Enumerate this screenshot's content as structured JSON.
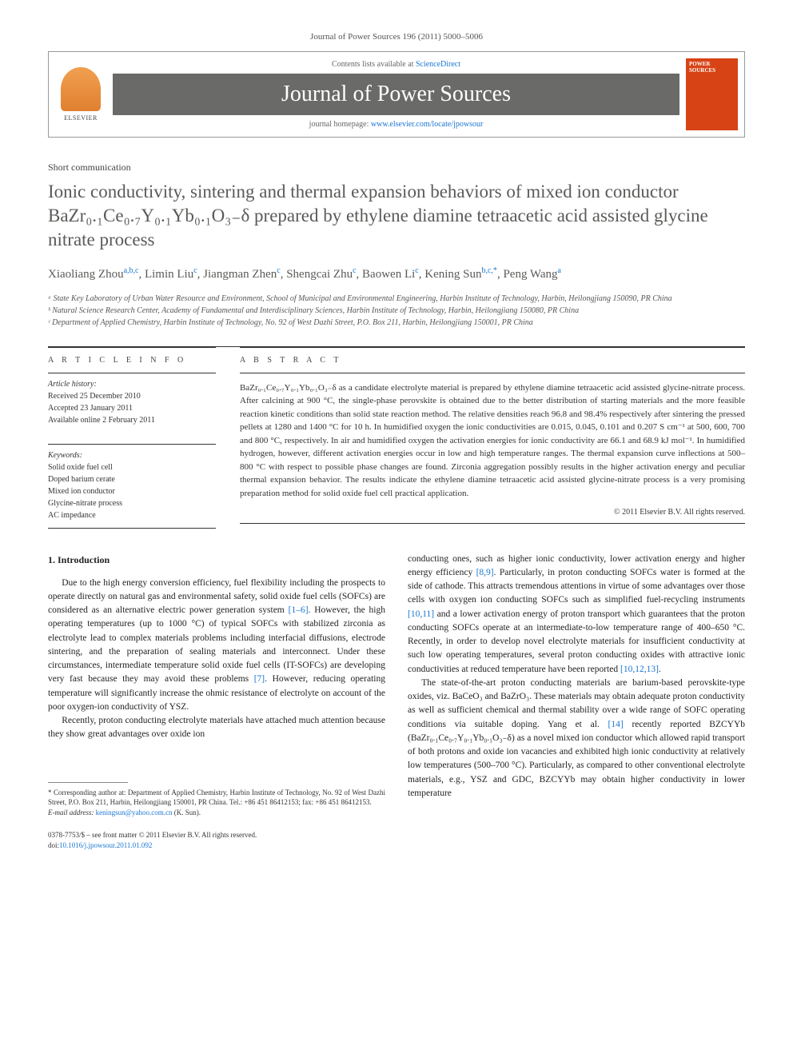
{
  "top_bar": "Journal of Power Sources 196 (2011) 5000–5006",
  "header": {
    "contents_prefix": "Contents lists available at ",
    "contents_link": "ScienceDirect",
    "journal_name": "Journal of Power Sources",
    "homepage_prefix": "journal homepage: ",
    "homepage_url": "www.elsevier.com/locate/jpowsour",
    "publisher": "ELSEVIER",
    "cover_title": "POWER SOURCES"
  },
  "article_type": "Short communication",
  "title": "Ionic conductivity, sintering and thermal expansion behaviors of mixed ion conductor BaZr₀.₁Ce₀.₇Y₀.₁Yb₀.₁O₃₋δ prepared by ethylene diamine tetraacetic acid assisted glycine nitrate process",
  "authors_html": "Xiaoliang Zhou<sup>a,b,c</sup>, Limin Liu<sup>c</sup>, Jiangman Zhen<sup>c</sup>, Shengcai Zhu<sup>c</sup>, Baowen Li<sup>c</sup>, Kening Sun<sup>b,c,*</sup>, Peng Wang<sup>a</sup>",
  "affiliations": [
    "ᵃ State Key Laboratory of Urban Water Resource and Environment, School of Municipal and Environmental Engineering, Harbin Institute of Technology, Harbin, Heilongjiang 150090, PR China",
    "ᵇ Natural Science Research Center, Academy of Fundamental and Interdisciplinary Sciences, Harbin Institute of Technology, Harbin, Heilongjiang 150080, PR China",
    "ᶜ Department of Applied Chemistry, Harbin Institute of Technology, No. 92 of West Dazhi Street, P.O. Box 211, Harbin, Heilongjiang 150001, PR China"
  ],
  "info": {
    "label": "A R T I C L E   I N F O",
    "history_label": "Article history:",
    "history": [
      "Received 25 December 2010",
      "Accepted 23 January 2011",
      "Available online 2 February 2011"
    ],
    "keywords_label": "Keywords:",
    "keywords": [
      "Solid oxide fuel cell",
      "Doped barium cerate",
      "Mixed ion conductor",
      "Glycine-nitrate process",
      "AC impedance"
    ]
  },
  "abstract": {
    "label": "A B S T R A C T",
    "text": "BaZr₀.₁Ce₀.₇Y₀.₁Yb₀.₁O₃₋δ as a candidate electrolyte material is prepared by ethylene diamine tetraacetic acid assisted glycine-nitrate process. After calcining at 900 °C, the single-phase perovskite is obtained due to the better distribution of starting materials and the more feasible reaction kinetic conditions than solid state reaction method. The relative densities reach 96.8 and 98.4% respectively after sintering the pressed pellets at 1280 and 1400 °C for 10 h. In humidified oxygen the ionic conductivities are 0.015, 0.045, 0.101 and 0.207 S cm⁻¹ at 500, 600, 700 and 800 °C, respectively. In air and humidified oxygen the activation energies for ionic conductivity are 66.1 and 68.9 kJ mol⁻¹. In humidified hydrogen, however, different activation energies occur in low and high temperature ranges. The thermal expansion curve inflections at 500–800 °C with respect to possible phase changes are found. Zirconia aggregation possibly results in the higher activation energy and peculiar thermal expansion behavior. The results indicate the ethylene diamine tetraacetic acid assisted glycine-nitrate process is a very promising preparation method for solid oxide fuel cell practical application.",
    "copyright": "© 2011 Elsevier B.V. All rights reserved."
  },
  "body": {
    "section_1_heading": "1. Introduction",
    "left_paras": [
      "Due to the high energy conversion efficiency, fuel flexibility including the prospects to operate directly on natural gas and environmental safety, solid oxide fuel cells (SOFCs) are considered as an alternative electric power generation system [1–6]. However, the high operating temperatures (up to 1000 °C) of typical SOFCs with stabilized zirconia as electrolyte lead to complex materials problems including interfacial diffusions, electrode sintering, and the preparation of sealing materials and interconnect. Under these circumstances, intermediate temperature solid oxide fuel cells (IT-SOFCs) are developing very fast because they may avoid these problems [7]. However, reducing operating temperature will significantly increase the ohmic resistance of electrolyte on account of the poor oxygen-ion conductivity of YSZ.",
      "Recently, proton conducting electrolyte materials have attached much attention because they show great advantages over oxide ion"
    ],
    "right_paras": [
      "conducting ones, such as higher ionic conductivity, lower activation energy and higher energy efficiency [8,9]. Particularly, in proton conducting SOFCs water is formed at the side of cathode. This attracts tremendous attentions in virtue of some advantages over those cells with oxygen ion conducting SOFCs such as simplified fuel-recycling instruments [10,11] and a lower activation energy of proton transport which guarantees that the proton conducting SOFCs operate at an intermediate-to-low temperature range of 400–650 °C. Recently, in order to develop novel electrolyte materials for insufficient conductivity at such low operating temperatures, several proton conducting oxides with attractive ionic conductivities at reduced temperature have been reported [10,12,13].",
      "The state-of-the-art proton conducting materials are barium-based perovskite-type oxides, viz. BaCeO₃ and BaZrO₃. These materials may obtain adequate proton conductivity as well as sufficient chemical and thermal stability over a wide range of SOFC operating conditions via suitable doping. Yang et al. [14] recently reported BZCYYb (BaZr₀.₁Ce₀.₇Y₀.₁Yb₀.₁O₃₋δ) as a novel mixed ion conductor which allowed rapid transport of both protons and oxide ion vacancies and exhibited high ionic conductivity at relatively low temperatures (500–700 °C). Particularly, as compared to other conventional electrolyte materials, e.g., YSZ and GDC, BZCYYb may obtain higher conductivity in lower temperature"
    ]
  },
  "footnote": {
    "corresponding": "* Corresponding author at: Department of Applied Chemistry, Harbin Institute of Technology, No. 92 of West Dazhi Street, P.O. Box 211, Harbin, Heilongjiang 150001, PR China. Tel.: +86 451 86412153; fax: +86 451 86412153.",
    "email_label": "E-mail address: ",
    "email": "keningsun@yahoo.com.cn",
    "email_suffix": " (K. Sun)."
  },
  "bottom": {
    "issn": "0378-7753/$ – see front matter © 2011 Elsevier B.V. All rights reserved.",
    "doi_label": "doi:",
    "doi": "10.1016/j.jpowsour.2011.01.092"
  },
  "colors": {
    "text": "#333333",
    "link": "#1976d2",
    "banner_bg": "#6a6a68",
    "cover_bg": "#d84315",
    "elsevier_orange": "#e08030"
  }
}
